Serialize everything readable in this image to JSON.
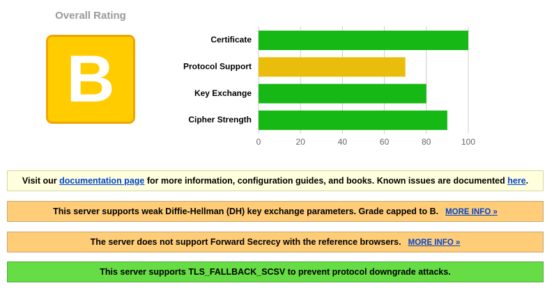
{
  "rating": {
    "title": "Overall Rating",
    "grade": "B"
  },
  "chart_data": {
    "type": "barh",
    "categories": [
      "Certificate",
      "Protocol Support",
      "Key Exchange",
      "Cipher Strength"
    ],
    "values": [
      100,
      70,
      80,
      90
    ],
    "colors": [
      "#16b816",
      "#eabd0c",
      "#16b816",
      "#16b816"
    ],
    "xlim": [
      0,
      100
    ],
    "xticks": [
      0,
      20,
      40,
      60,
      80,
      100
    ],
    "grid": true
  },
  "notices": [
    {
      "style": "info",
      "parts": [
        {
          "text": "Visit our ",
          "link": false
        },
        {
          "text": "documentation page",
          "link": true
        },
        {
          "text": " for more information, configuration guides, and books. Known issues are documented ",
          "link": false
        },
        {
          "text": "here",
          "link": true
        },
        {
          "text": ".",
          "link": false
        }
      ]
    },
    {
      "style": "warning",
      "parts": [
        {
          "text": "This server supports weak Diffie-Hellman (DH) key exchange parameters. Grade capped to B.",
          "link": false
        },
        {
          "text": "MORE INFO »",
          "link": true
        }
      ]
    },
    {
      "style": "warning",
      "parts": [
        {
          "text": "The server does not support Forward Secrecy with the reference browsers.",
          "link": false
        },
        {
          "text": "MORE INFO »",
          "link": true
        }
      ]
    },
    {
      "style": "good",
      "parts": [
        {
          "text": "This server supports TLS_FALLBACK_SCSV to prevent protocol downgrade attacks.",
          "link": false
        }
      ]
    }
  ]
}
